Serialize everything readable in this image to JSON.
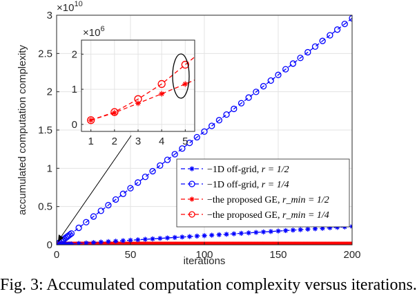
{
  "caption": "Fig. 3: Accumulated computation complexity versus iterations.",
  "chart_data": {
    "type": "line",
    "xlabel": "iterations",
    "ylabel": "accumulated computation complexity",
    "y_exponent": "×10",
    "y_exponent_power": "10",
    "xlim": [
      0,
      200
    ],
    "ylim": [
      0,
      3
    ],
    "xticks": [
      "0",
      "50",
      "100",
      "150",
      "200"
    ],
    "yticks": [
      "0",
      "0.5",
      "1",
      "1.5",
      "2",
      "2.5",
      "3"
    ],
    "grid": true,
    "legend_position": "lower-right",
    "series": [
      {
        "label": "1D off-grid, ",
        "label_math": "r = 1/2",
        "marker": "asterisk",
        "color": "#0000ff",
        "slope": 0.0012,
        "marker_every": 5
      },
      {
        "label": "1D off-grid, ",
        "label_math": "r = 1/4",
        "marker": "circle",
        "color": "#0000ff",
        "slope": 0.0148,
        "marker_every": 5
      },
      {
        "label": "the proposed GE, ",
        "label_math": "r_min = 1/2",
        "marker": "asterisk",
        "color": "#ff0000",
        "slope": 6e-07,
        "marker_every": 1
      },
      {
        "label": "the proposed GE, ",
        "label_math": "r_min = 1/4",
        "marker": "circle",
        "color": "#ff0000",
        "slope": 8e-07,
        "marker_every": 1
      }
    ],
    "inset": {
      "y_exponent": "×10",
      "y_exponent_power": "6",
      "xlim": [
        0.6,
        5.4
      ],
      "ylim": [
        -0.2,
        2.4
      ],
      "xticks": [
        "1",
        "2",
        "3",
        "4",
        "5"
      ],
      "yticks": [
        "0",
        "1",
        "2"
      ],
      "series": [
        {
          "marker": "asterisk",
          "color": "#ff0000",
          "x": [
            1,
            2,
            3,
            4,
            5
          ],
          "y": [
            0.12,
            0.33,
            0.6,
            0.87,
            1.15
          ]
        },
        {
          "marker": "circle",
          "color": "#ff0000",
          "x": [
            1,
            2,
            3,
            4,
            5
          ],
          "y": [
            0.12,
            0.35,
            0.72,
            1.15,
            1.7
          ]
        }
      ]
    }
  }
}
